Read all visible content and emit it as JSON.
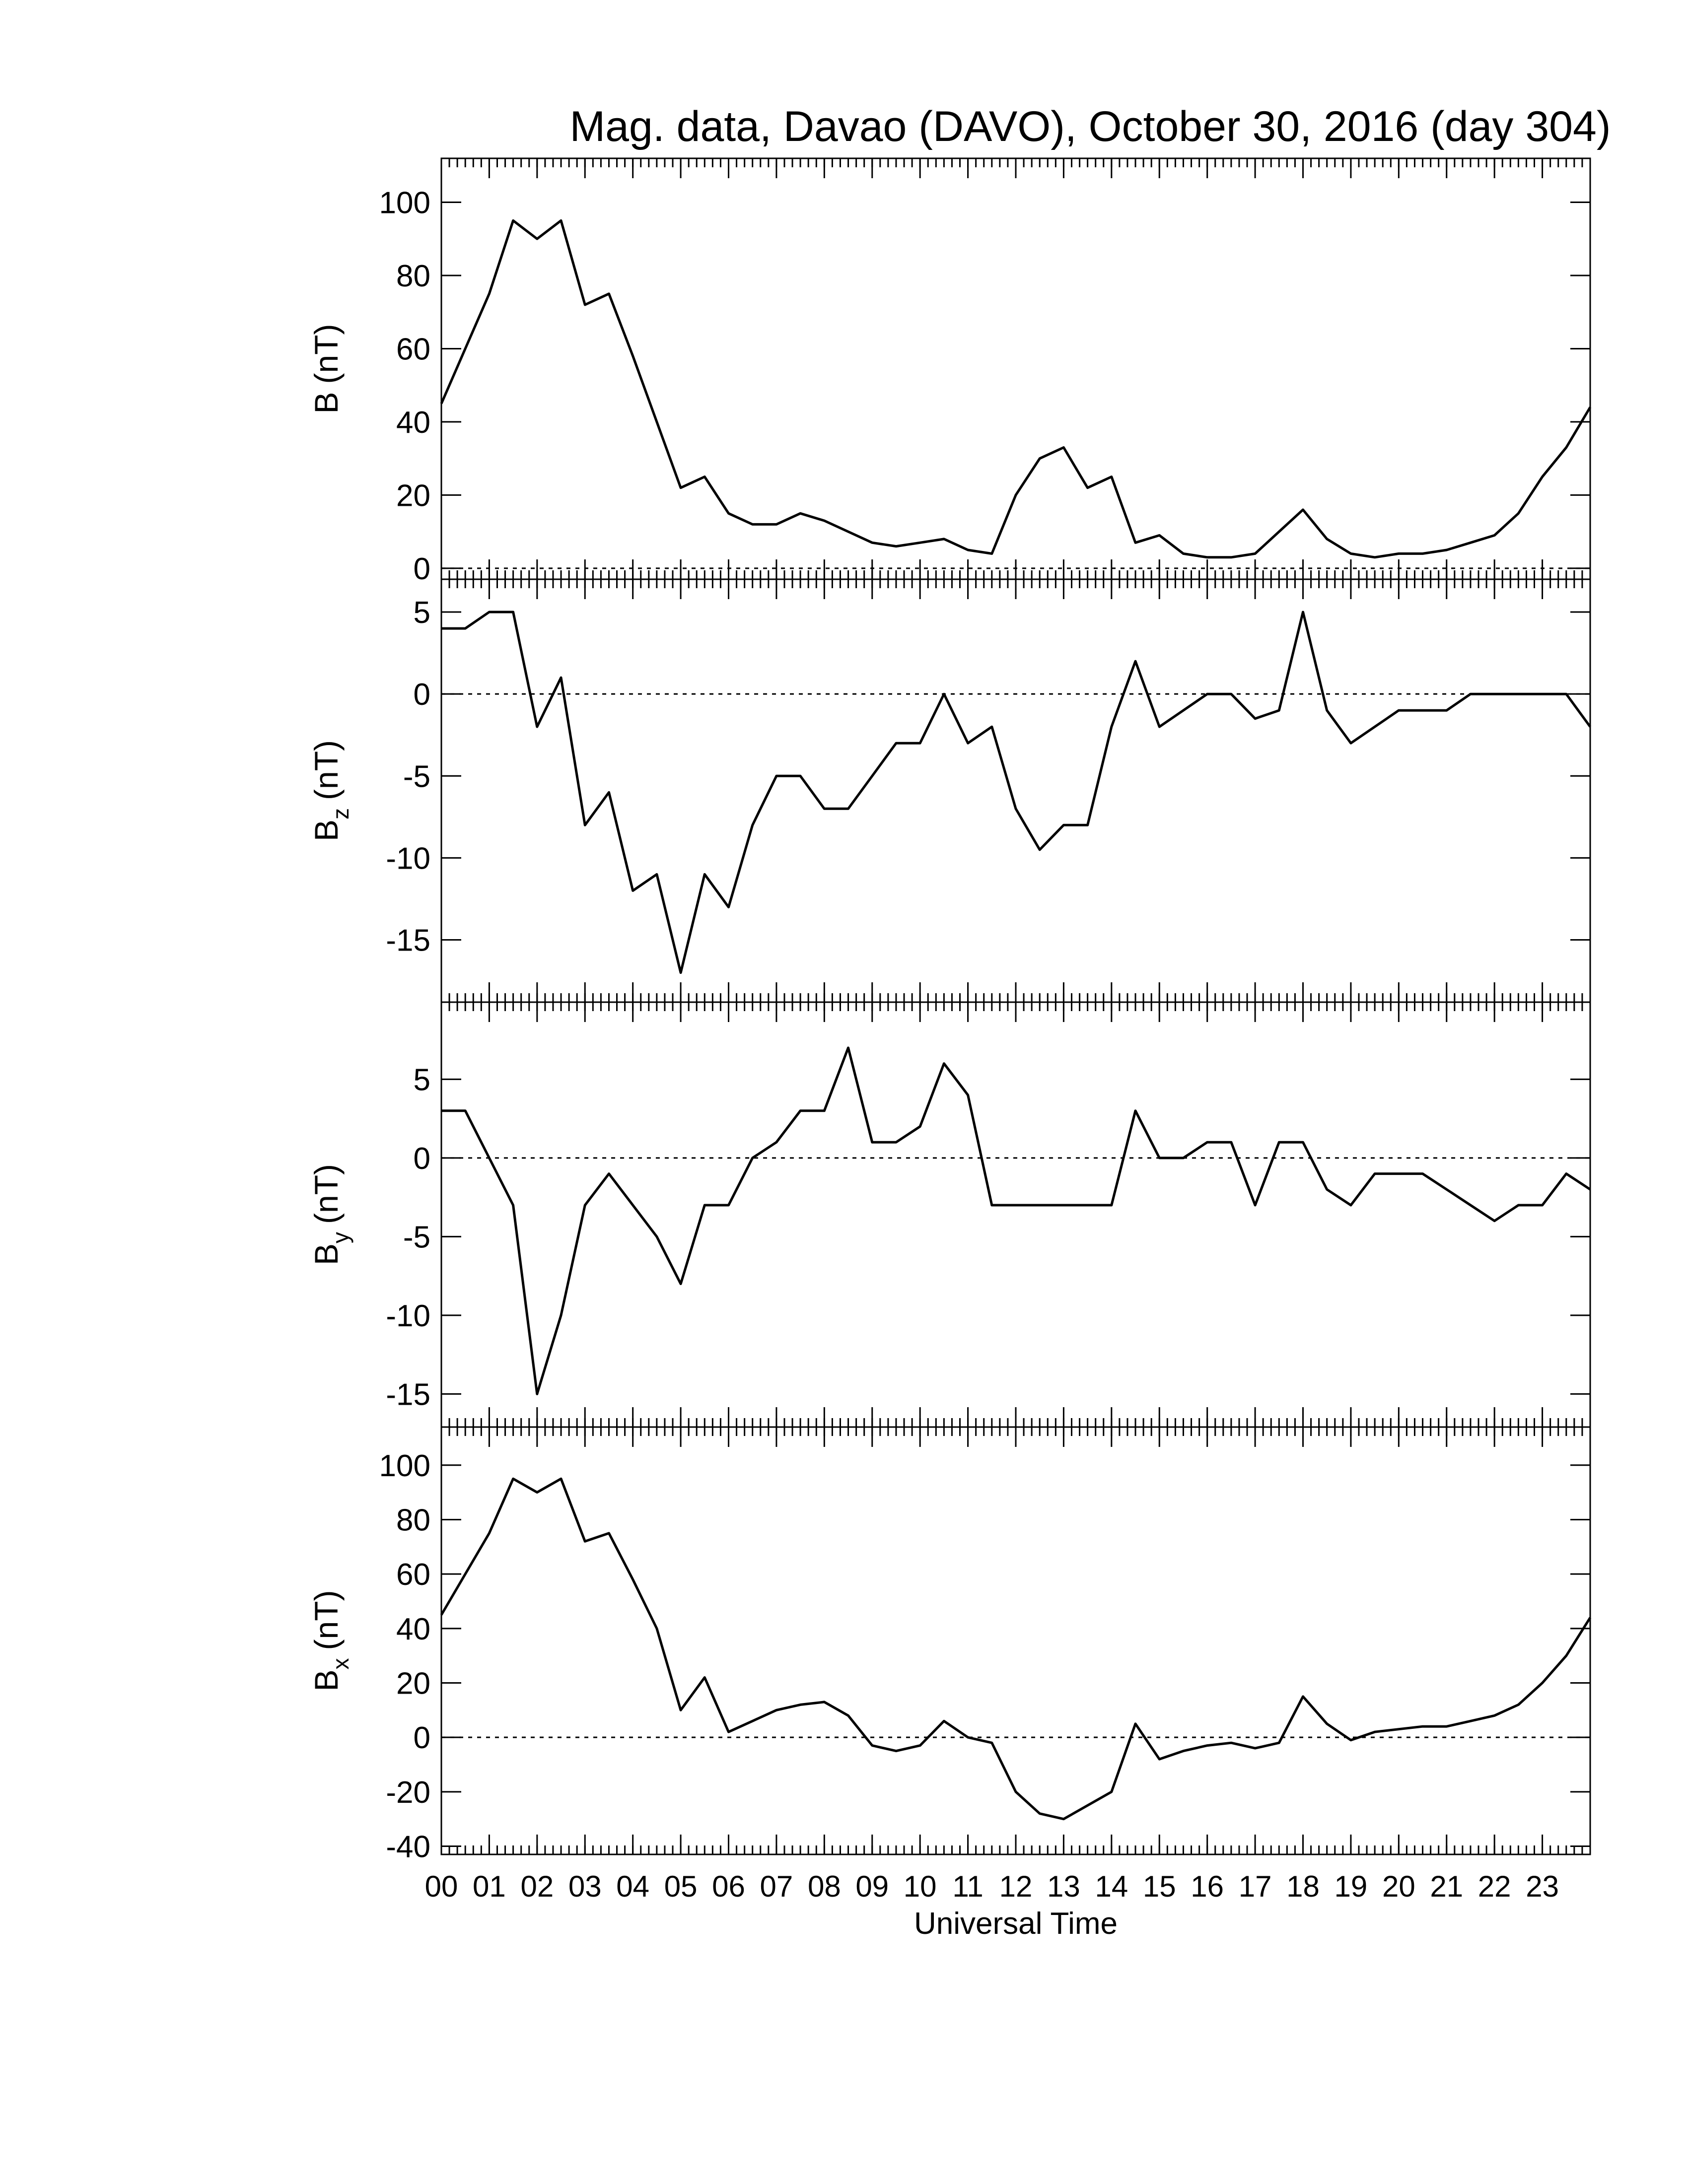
{
  "chart_data": [
    {
      "type": "line",
      "title": "Mag. data, Davao (DAVO), October 30, 2016 (day 304)",
      "ylabel": "B",
      "ylabel_unit": "(nT)",
      "zero_line": true,
      "color": "#000000",
      "x": [
        0,
        0.5,
        1,
        1.5,
        2,
        2.5,
        3,
        3.5,
        4,
        4.5,
        5,
        5.5,
        6,
        6.5,
        7,
        7.5,
        8,
        8.5,
        9,
        9.5,
        10,
        10.5,
        11,
        11.5,
        12,
        12.5,
        13,
        13.5,
        14,
        14.5,
        15,
        15.5,
        16,
        16.5,
        17,
        17.5,
        18,
        18.5,
        19,
        19.5,
        20,
        20.5,
        21,
        21.5,
        22,
        22.5,
        23,
        23.5,
        24
      ],
      "values": [
        45,
        60,
        75,
        95,
        90,
        95,
        72,
        75,
        58,
        40,
        22,
        25,
        15,
        12,
        12,
        15,
        13,
        10,
        7,
        6,
        7,
        8,
        5,
        4,
        20,
        30,
        33,
        22,
        25,
        7,
        9,
        4,
        3,
        3,
        4,
        10,
        16,
        8,
        4,
        3,
        4,
        4,
        5,
        7,
        9,
        15,
        25,
        33,
        44
      ],
      "xlim": [
        0,
        24
      ],
      "ylim": [
        -3,
        112
      ],
      "yticks": [
        0,
        20,
        40,
        60,
        80,
        100
      ]
    },
    {
      "type": "line",
      "ylabel": "B",
      "ylabel_sub": "z",
      "ylabel_unit": "(nT)",
      "zero_line": true,
      "color": "#000000",
      "x": [
        0,
        0.5,
        1,
        1.5,
        2,
        2.5,
        3,
        3.5,
        4,
        4.5,
        5,
        5.5,
        6,
        6.5,
        7,
        7.5,
        8,
        8.5,
        9,
        9.5,
        10,
        10.5,
        11,
        11.5,
        12,
        12.5,
        13,
        13.5,
        14,
        14.5,
        15,
        15.5,
        16,
        16.5,
        17,
        17.5,
        18,
        18.5,
        19,
        19.5,
        20,
        20.5,
        21,
        21.5,
        22,
        22.5,
        23,
        23.5,
        24
      ],
      "values": [
        4,
        4,
        5,
        5,
        -2,
        1,
        -8,
        -6,
        -12,
        -11,
        -17,
        -11,
        -13,
        -8,
        -5,
        -5,
        -7,
        -7,
        -5,
        -3,
        -3,
        0,
        -3,
        -2,
        -7,
        -9.5,
        -8,
        -8,
        -2,
        2,
        -2,
        -1,
        0,
        0,
        -1.5,
        -1,
        5,
        -1,
        -3,
        -2,
        -1,
        -1,
        -1,
        0,
        0,
        0,
        0,
        0,
        -2
      ],
      "xlim": [
        0,
        24
      ],
      "ylim": [
        -18.8,
        7
      ],
      "yticks": [
        -15,
        -10,
        -5,
        0,
        5
      ]
    },
    {
      "type": "line",
      "ylabel": "B",
      "ylabel_sub": "y",
      "ylabel_unit": "(nT)",
      "zero_line": true,
      "color": "#000000",
      "x": [
        0,
        0.5,
        1,
        1.5,
        2,
        2.5,
        3,
        3.5,
        4,
        4.5,
        5,
        5.5,
        6,
        6.5,
        7,
        7.5,
        8,
        8.5,
        9,
        9.5,
        10,
        10.5,
        11,
        11.5,
        12,
        12.5,
        13,
        13.5,
        14,
        14.5,
        15,
        15.5,
        16,
        16.5,
        17,
        17.5,
        18,
        18.5,
        19,
        19.5,
        20,
        20.5,
        21,
        21.5,
        22,
        22.5,
        23,
        23.5,
        24
      ],
      "values": [
        3,
        3,
        0,
        -3,
        -15,
        -10,
        -3,
        -1,
        -3,
        -5,
        -8,
        -3,
        -3,
        0,
        1,
        3,
        3,
        7,
        1,
        1,
        2,
        6,
        4,
        -3,
        -3,
        -3,
        -3,
        -3,
        -3,
        3,
        0,
        0,
        1,
        1,
        -3,
        1,
        1,
        -2,
        -3,
        -1,
        -1,
        -1,
        -2,
        -3,
        -4,
        -3,
        -3,
        -1,
        -2
      ],
      "xlim": [
        0,
        24
      ],
      "ylim": [
        -17.1,
        9.9
      ],
      "yticks": [
        -15,
        -10,
        -5,
        0,
        5
      ]
    },
    {
      "type": "line",
      "ylabel": "B",
      "ylabel_sub": "x",
      "ylabel_unit": "(nT)",
      "zero_line": true,
      "color": "#000000",
      "xlabel": "Universal Time",
      "x": [
        0,
        0.5,
        1,
        1.5,
        2,
        2.5,
        3,
        3.5,
        4,
        4.5,
        5,
        5.5,
        6,
        6.5,
        7,
        7.5,
        8,
        8.5,
        9,
        9.5,
        10,
        10.5,
        11,
        11.5,
        12,
        12.5,
        13,
        13.5,
        14,
        14.5,
        15,
        15.5,
        16,
        16.5,
        17,
        17.5,
        18,
        18.5,
        19,
        19.5,
        20,
        20.5,
        21,
        21.5,
        22,
        22.5,
        23,
        23.5,
        24
      ],
      "values": [
        45,
        60,
        75,
        95,
        90,
        95,
        72,
        75,
        58,
        40,
        10,
        22,
        2,
        6,
        10,
        12,
        13,
        8,
        -3,
        -5,
        -3,
        6,
        0,
        -2,
        -20,
        -28,
        -30,
        -25,
        -20,
        5,
        -8,
        -5,
        -3,
        -2,
        -4,
        -2,
        15,
        5,
        -1,
        2,
        3,
        4,
        4,
        6,
        8,
        12,
        20,
        30,
        44
      ],
      "xlim": [
        0,
        24
      ],
      "ylim": [
        -43,
        114
      ],
      "yticks": [
        -40,
        -20,
        0,
        20,
        40,
        60,
        80,
        100
      ],
      "xticks": [
        {
          "value": 0,
          "label": "00"
        },
        {
          "value": 1,
          "label": "01"
        },
        {
          "value": 2,
          "label": "02"
        },
        {
          "value": 3,
          "label": "03"
        },
        {
          "value": 4,
          "label": "04"
        },
        {
          "value": 5,
          "label": "05"
        },
        {
          "value": 6,
          "label": "06"
        },
        {
          "value": 7,
          "label": "07"
        },
        {
          "value": 8,
          "label": "08"
        },
        {
          "value": 9,
          "label": "09"
        },
        {
          "value": 10,
          "label": "10"
        },
        {
          "value": 11,
          "label": "11"
        },
        {
          "value": 12,
          "label": "12"
        },
        {
          "value": 13,
          "label": "13"
        },
        {
          "value": 14,
          "label": "14"
        },
        {
          "value": 15,
          "label": "15"
        },
        {
          "value": 16,
          "label": "16"
        },
        {
          "value": 17,
          "label": "17"
        },
        {
          "value": 18,
          "label": "18"
        },
        {
          "value": 19,
          "label": "19"
        },
        {
          "value": 20,
          "label": "20"
        },
        {
          "value": 21,
          "label": "21"
        },
        {
          "value": 22,
          "label": "22"
        },
        {
          "value": 23,
          "label": "23"
        }
      ]
    }
  ]
}
